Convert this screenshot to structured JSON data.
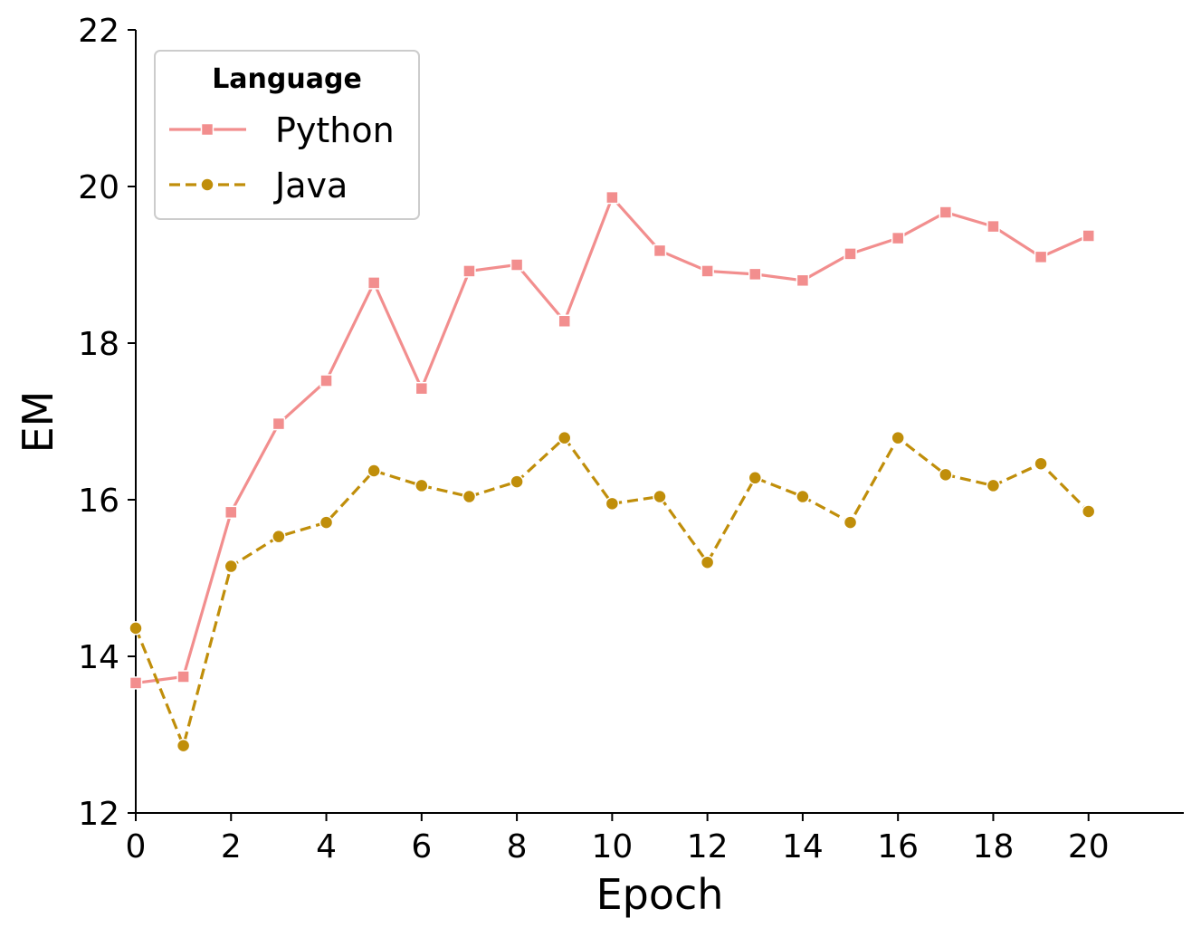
{
  "chart_data": {
    "type": "line",
    "title": "",
    "xlabel": "Epoch",
    "ylabel": "EM",
    "xlim": [
      0,
      22
    ],
    "ylim": [
      12,
      22
    ],
    "xticks": [
      0,
      2,
      4,
      6,
      8,
      10,
      12,
      14,
      16,
      18,
      20
    ],
    "yticks": [
      12,
      14,
      16,
      18,
      20,
      22
    ],
    "grid": false,
    "legend": {
      "title": "Language",
      "placement": "top-left"
    },
    "x": [
      0,
      1,
      2,
      3,
      4,
      5,
      6,
      7,
      8,
      9,
      10,
      11,
      12,
      13,
      14,
      15,
      16,
      17,
      18,
      19,
      20
    ],
    "series": [
      {
        "name": "Python",
        "color": "#f28e8e",
        "marker": "square",
        "line_style": "solid",
        "values": [
          13.66,
          13.74,
          15.84,
          16.97,
          17.52,
          18.77,
          17.42,
          18.92,
          19.0,
          18.28,
          19.86,
          19.18,
          18.92,
          18.88,
          18.8,
          19.14,
          19.34,
          19.67,
          19.49,
          19.1,
          19.37
        ]
      },
      {
        "name": "Java",
        "color": "#c08e0a",
        "marker": "circle",
        "line_style": "dashed",
        "values": [
          14.36,
          12.86,
          15.15,
          15.53,
          15.71,
          16.37,
          16.18,
          16.04,
          16.23,
          16.79,
          15.95,
          16.04,
          15.2,
          16.28,
          16.04,
          15.71,
          16.79,
          16.32,
          16.18,
          16.46,
          15.85
        ]
      }
    ]
  }
}
